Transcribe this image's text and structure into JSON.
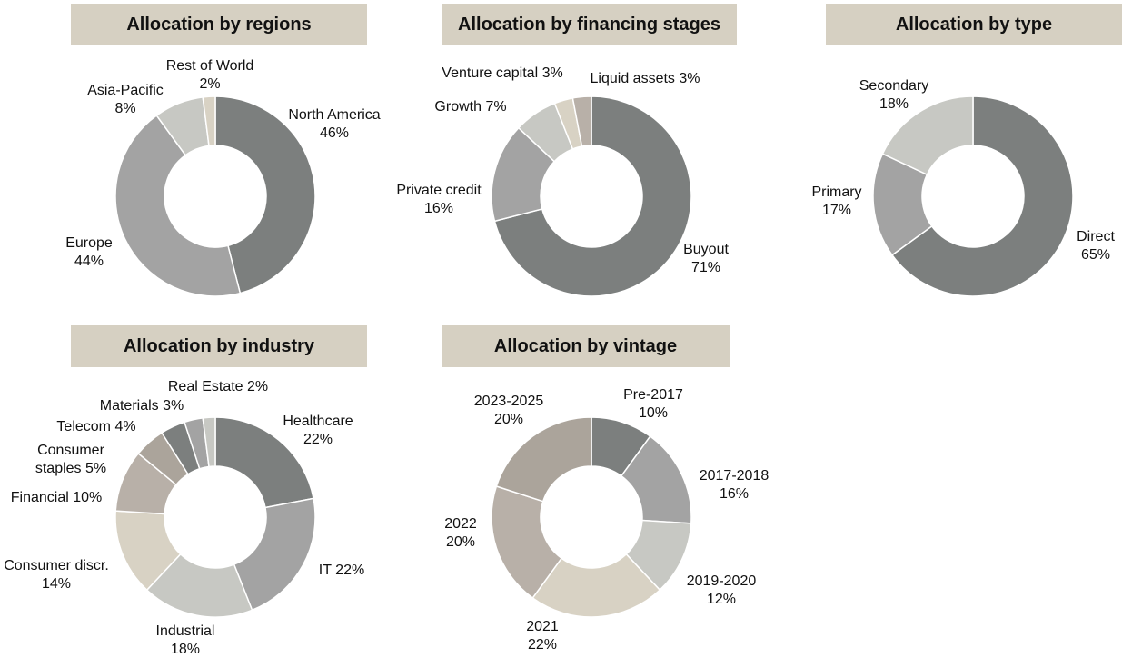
{
  "chart_data": [
    {
      "type": "pie",
      "title": "Allocation by regions",
      "slices": [
        {
          "label": "North America",
          "value": 46,
          "pct_label": "46%",
          "color": "#7c7f7e"
        },
        {
          "label": "Europe",
          "value": 44,
          "pct_label": "44%",
          "color": "#a3a3a3"
        },
        {
          "label": "Asia-Pacific",
          "value": 8,
          "pct_label": "8%",
          "color": "#c7c8c3"
        },
        {
          "label": "Rest of World",
          "value": 2,
          "pct_label": "2%",
          "color": "#d8d2c4"
        }
      ]
    },
    {
      "type": "pie",
      "title": "Allocation by financing stages",
      "slices": [
        {
          "label": "Buyout",
          "value": 71,
          "pct_label": "71%",
          "color": "#7c7f7e"
        },
        {
          "label": "Private credit",
          "value": 16,
          "pct_label": "16%",
          "color": "#a3a3a3"
        },
        {
          "label": "Growth",
          "value": 7,
          "pct_label": "7%",
          "color": "#c7c8c3"
        },
        {
          "label": "Venture capital",
          "value": 3,
          "pct_label": "3%",
          "color": "#d8d2c4"
        },
        {
          "label": "Liquid assets",
          "value": 3,
          "pct_label": "3%",
          "color": "#b8b0a8"
        }
      ]
    },
    {
      "type": "pie",
      "title": "Allocation by type",
      "slices": [
        {
          "label": "Direct",
          "value": 65,
          "pct_label": "65%",
          "color": "#7c7f7e"
        },
        {
          "label": "Primary",
          "value": 17,
          "pct_label": "17%",
          "color": "#a3a3a3"
        },
        {
          "label": "Secondary",
          "value": 18,
          "pct_label": "18%",
          "color": "#c7c8c3"
        }
      ]
    },
    {
      "type": "pie",
      "title": "Allocation by industry",
      "slices": [
        {
          "label": "Healthcare",
          "value": 22,
          "pct_label": "22%",
          "color": "#7c7f7e"
        },
        {
          "label": "IT",
          "value": 22,
          "pct_label": "22%",
          "color": "#a3a3a3"
        },
        {
          "label": "Industrial",
          "value": 18,
          "pct_label": "18%",
          "color": "#c7c8c3"
        },
        {
          "label": "Consumer discr.",
          "value": 14,
          "pct_label": "14%",
          "color": "#d8d2c4"
        },
        {
          "label": "Financial",
          "value": 10,
          "pct_label": "10%",
          "color": "#b8b0a8"
        },
        {
          "label": "Consumer staples",
          "value": 5,
          "pct_label": "5%",
          "color": "#aba49b"
        },
        {
          "label": "Telecom",
          "value": 4,
          "pct_label": "4%",
          "color": "#7c7f7e"
        },
        {
          "label": "Materials",
          "value": 3,
          "pct_label": "3%",
          "color": "#a3a3a3"
        },
        {
          "label": "Real Estate",
          "value": 2,
          "pct_label": "2%",
          "color": "#c7c8c3"
        }
      ]
    },
    {
      "type": "pie",
      "title": "Allocation by vintage",
      "slices": [
        {
          "label": "Pre-2017",
          "value": 10,
          "pct_label": "10%",
          "color": "#7c7f7e"
        },
        {
          "label": "2017-2018",
          "value": 16,
          "pct_label": "16%",
          "color": "#a3a3a3"
        },
        {
          "label": "2019-2020",
          "value": 12,
          "pct_label": "12%",
          "color": "#c7c8c3"
        },
        {
          "label": "2021",
          "value": 22,
          "pct_label": "22%",
          "color": "#d8d2c4"
        },
        {
          "label": "2022",
          "value": 20,
          "pct_label": "20%",
          "color": "#b8b0a8"
        },
        {
          "label": "2023-2025",
          "value": 20,
          "pct_label": "20%",
          "color": "#aba49b"
        }
      ]
    }
  ]
}
